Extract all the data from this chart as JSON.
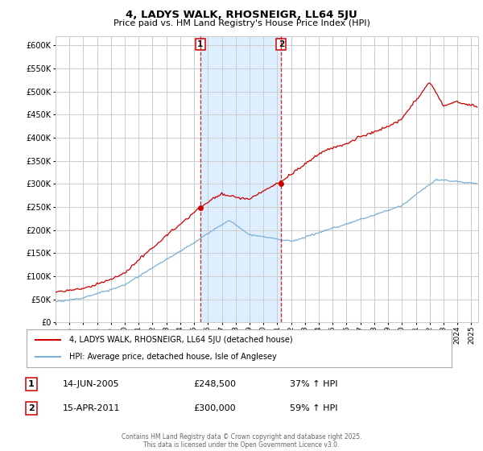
{
  "title": "4, LADYS WALK, RHOSNEIGR, LL64 5JU",
  "subtitle": "Price paid vs. HM Land Registry's House Price Index (HPI)",
  "legend_line1": "4, LADYS WALK, RHOSNEIGR, LL64 5JU (detached house)",
  "legend_line2": "HPI: Average price, detached house, Isle of Anglesey",
  "annotation1_label": "1",
  "annotation1_date": "14-JUN-2005",
  "annotation1_price": "£248,500",
  "annotation1_hpi": "37% ↑ HPI",
  "annotation2_label": "2",
  "annotation2_date": "15-APR-2011",
  "annotation2_price": "£300,000",
  "annotation2_hpi": "59% ↑ HPI",
  "copyright": "Contains HM Land Registry data © Crown copyright and database right 2025.\nThis data is licensed under the Open Government Licence v3.0.",
  "vline1_x": 2005.45,
  "vline2_x": 2011.29,
  "marker1_red_x": 2005.45,
  "marker1_red_y": 248500,
  "marker2_red_x": 2011.29,
  "marker2_red_y": 300000,
  "red_line_color": "#cc0000",
  "blue_line_color": "#7ab0d4",
  "vline_color": "#cc0000",
  "background_color": "#ffffff",
  "plot_bg_color": "#ffffff",
  "grid_color": "#cccccc",
  "highlight_bg_color": "#ddeeff",
  "ylim": [
    0,
    620000
  ],
  "yticks": [
    0,
    50000,
    100000,
    150000,
    200000,
    250000,
    300000,
    350000,
    400000,
    450000,
    500000,
    550000,
    600000
  ],
  "xmin": 1995.0,
  "xmax": 2025.5
}
